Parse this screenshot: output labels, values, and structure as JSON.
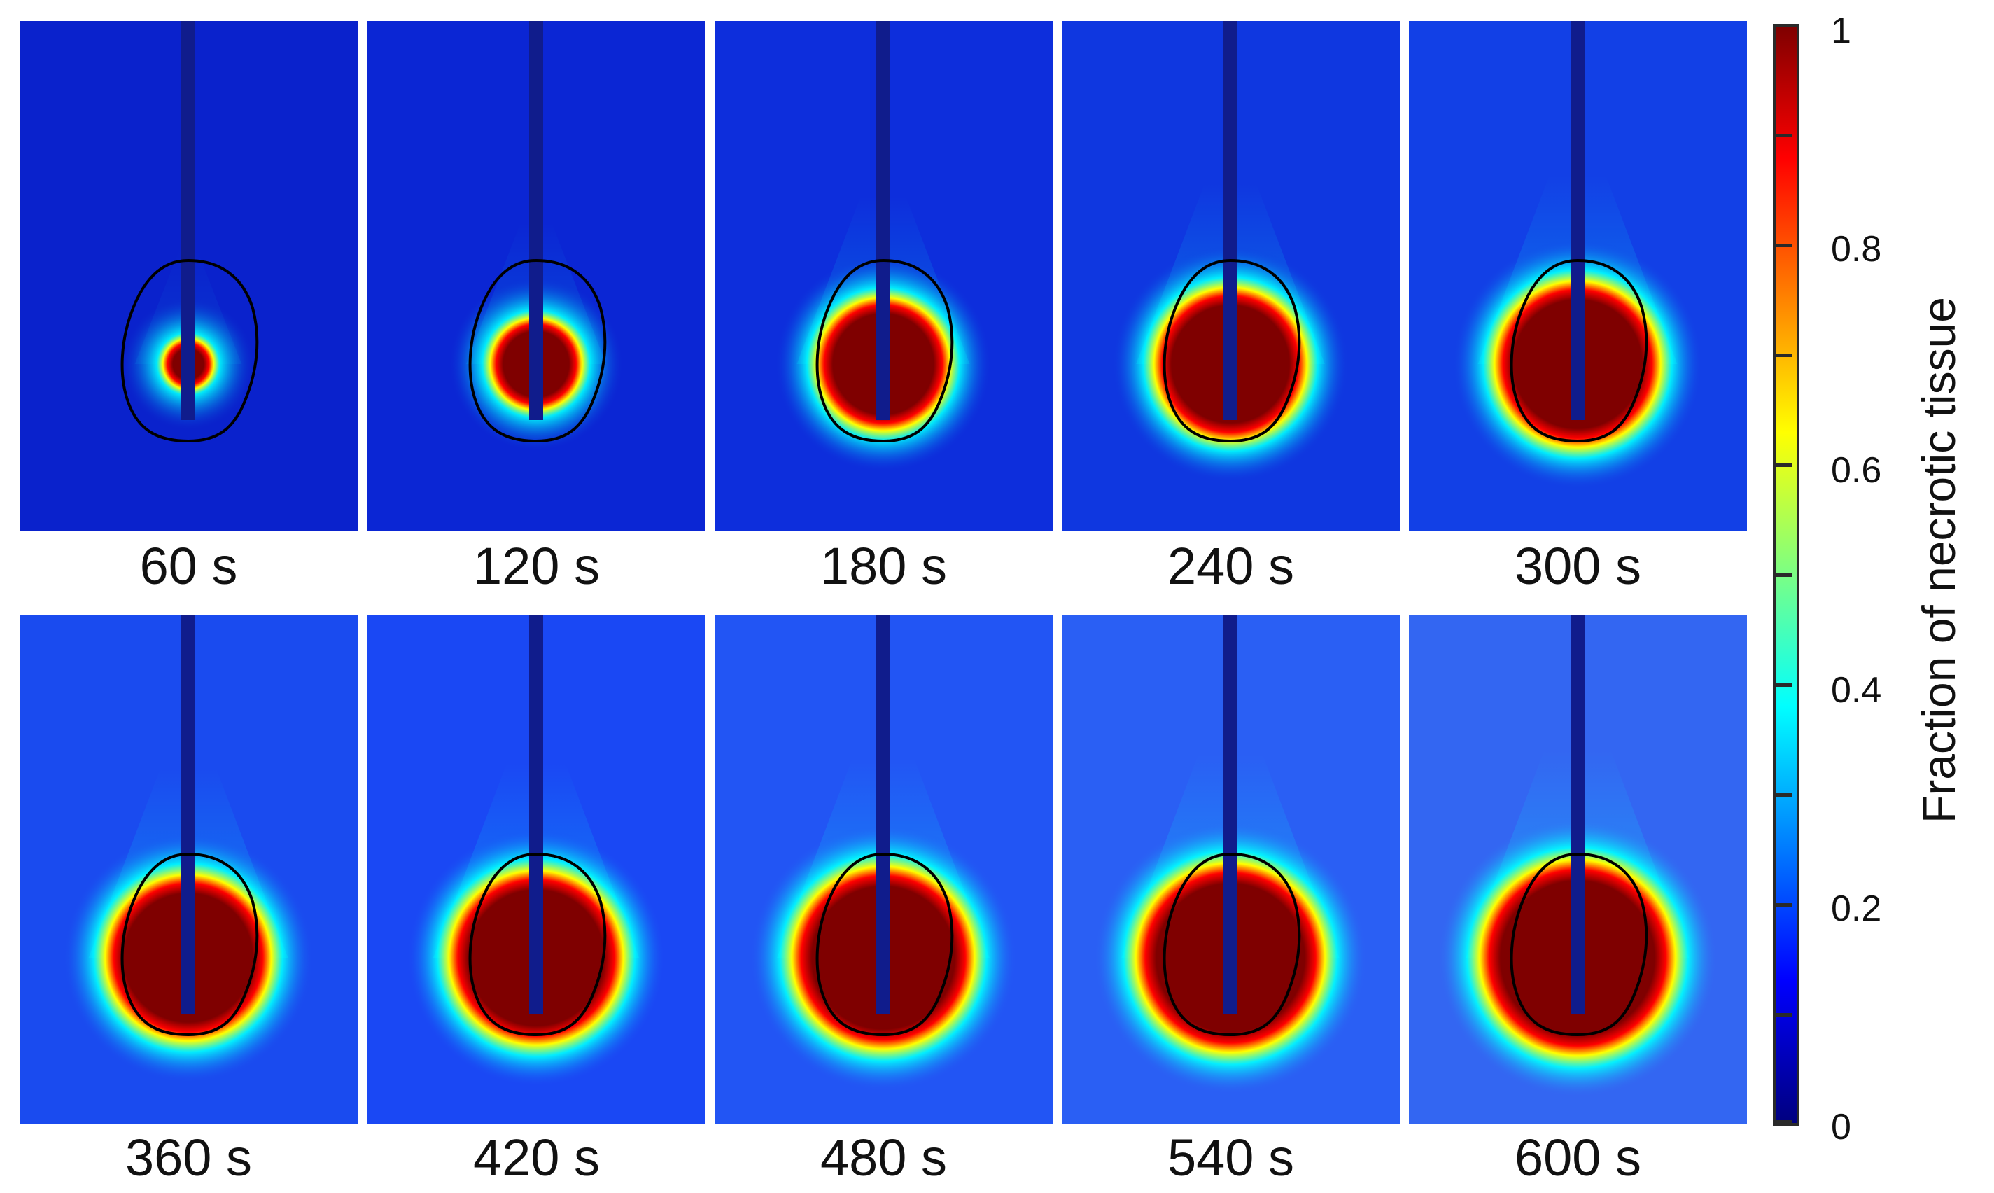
{
  "panels": [
    {
      "label": "60 s",
      "spread": 0.3,
      "background": "#0a22cc"
    },
    {
      "label": "120 s",
      "spread": 0.55,
      "background": "#0b26d4"
    },
    {
      "label": "180 s",
      "spread": 0.8,
      "background": "#0d2edc"
    },
    {
      "label": "240 s",
      "spread": 0.92,
      "background": "#0f37e0"
    },
    {
      "label": "300 s",
      "spread": 1.0,
      "background": "#1240e6"
    },
    {
      "label": "360 s",
      "spread": 1.0,
      "background": "#1a4bef"
    },
    {
      "label": "420 s",
      "spread": 1.05,
      "background": "#1a48f4"
    },
    {
      "label": "480 s",
      "spread": 1.1,
      "background": "#2255f4"
    },
    {
      "label": "540 s",
      "spread": 1.14,
      "background": "#2a5ff4"
    },
    {
      "label": "600 s",
      "spread": 1.18,
      "background": "#3366f2"
    }
  ],
  "colorbar": {
    "title": "Fraction of necrotic tissue",
    "tick_labels": [
      "1",
      "0.8",
      "0.6",
      "0.4",
      "0.2",
      "0"
    ],
    "tick_values": [
      1,
      0.8,
      0.6,
      0.4,
      0.2,
      0
    ],
    "colormap": [
      "#00007f",
      "#0000ff",
      "#00ffff",
      "#ffff00",
      "#ff0000",
      "#7f0000"
    ]
  },
  "colors": {
    "necrotic_core": "#7f0000",
    "probe": "#101c8c",
    "contour": "#000000"
  }
}
